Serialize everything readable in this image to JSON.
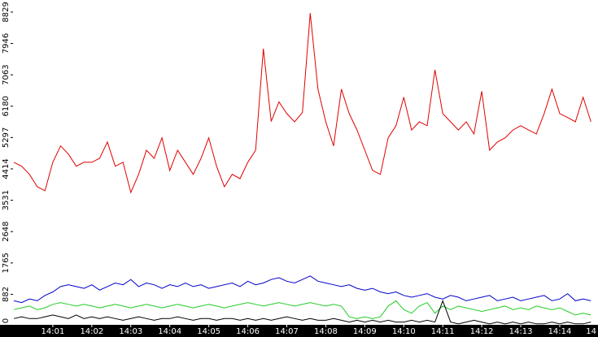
{
  "chart_data": {
    "type": "line",
    "x": [
      0,
      0.2,
      0.4,
      0.6,
      0.8,
      1,
      1.2,
      1.4,
      1.6,
      1.8,
      2,
      2.2,
      2.4,
      2.6,
      2.8,
      3,
      3.2,
      3.4,
      3.6,
      3.8,
      4,
      4.2,
      4.4,
      4.6,
      4.8,
      5,
      5.2,
      5.4,
      5.6,
      5.8,
      6,
      6.2,
      6.4,
      6.6,
      6.8,
      7,
      7.2,
      7.4,
      7.6,
      7.8,
      8,
      8.2,
      8.4,
      8.6,
      8.8,
      9,
      9.2,
      9.4,
      9.6,
      9.8,
      10,
      10.2,
      10.4,
      10.6,
      10.8,
      11,
      11.2,
      11.4,
      11.6,
      11.8,
      12,
      12.2,
      12.4,
      12.6,
      12.8,
      13,
      13.2,
      13.4,
      13.6,
      13.8,
      14,
      14.2,
      14.4,
      14.6,
      14.8
    ],
    "xlim": [
      0,
      14.96
    ],
    "xticks": [
      {
        "value": 1,
        "label": "14:01"
      },
      {
        "value": 2,
        "label": "14:02"
      },
      {
        "value": 3,
        "label": "14:03"
      },
      {
        "value": 4,
        "label": "14:04"
      },
      {
        "value": 5,
        "label": "14:05"
      },
      {
        "value": 6,
        "label": "14:06"
      },
      {
        "value": 7,
        "label": "14:07"
      },
      {
        "value": 8,
        "label": "14:08"
      },
      {
        "value": 9,
        "label": "14:09"
      },
      {
        "value": 10,
        "label": "14:10"
      },
      {
        "value": 11,
        "label": "14:11"
      },
      {
        "value": 12,
        "label": "14:12"
      },
      {
        "value": 13,
        "label": "14:13"
      },
      {
        "value": 14,
        "label": "14:14"
      },
      {
        "value": 15,
        "label": "14"
      }
    ],
    "ylim": [
      0,
      9170
    ],
    "yticks": [
      0,
      882,
      1765,
      2648,
      3531,
      4414,
      5297,
      6180,
      7063,
      7946,
      8829
    ],
    "series": [
      {
        "color": "#e00000",
        "values": [
          4600,
          4490,
          4260,
          3910,
          3800,
          4600,
          5060,
          4830,
          4490,
          4600,
          4600,
          4710,
          5170,
          4490,
          4600,
          3750,
          4260,
          4940,
          4710,
          5290,
          4370,
          4940,
          4600,
          4260,
          4710,
          5290,
          4490,
          3910,
          4260,
          4140,
          4600,
          4940,
          7800,
          5750,
          6300,
          5970,
          5740,
          6000,
          8800,
          6660,
          5740,
          5060,
          6660,
          5970,
          5510,
          4940,
          4370,
          4260,
          5290,
          5630,
          6430,
          5510,
          5740,
          5630,
          7200,
          5970,
          5740,
          5510,
          5740,
          5400,
          6600,
          4940,
          5170,
          5290,
          5510,
          5630,
          5510,
          5400,
          5970,
          6660,
          5970,
          5860,
          5740,
          6430,
          5740
        ]
      },
      {
        "color": "#0000cc",
        "values": [
          700,
          650,
          750,
          700,
          850,
          950,
          1100,
          1150,
          1100,
          1050,
          1150,
          1000,
          1100,
          1200,
          1150,
          1300,
          1100,
          1200,
          1150,
          1050,
          1150,
          1100,
          1200,
          1100,
          1150,
          1050,
          1100,
          1150,
          1200,
          1100,
          1250,
          1150,
          1200,
          1300,
          1350,
          1250,
          1200,
          1300,
          1400,
          1250,
          1200,
          1150,
          1100,
          1150,
          1050,
          1000,
          1050,
          950,
          900,
          950,
          850,
          800,
          850,
          900,
          800,
          750,
          850,
          800,
          700,
          750,
          800,
          850,
          700,
          750,
          800,
          700,
          750,
          800,
          850,
          700,
          750,
          900,
          700,
          750,
          700
        ]
      },
      {
        "color": "#22cc22",
        "values": [
          450,
          500,
          550,
          450,
          500,
          600,
          650,
          600,
          550,
          600,
          550,
          500,
          550,
          600,
          550,
          500,
          550,
          600,
          550,
          500,
          550,
          600,
          550,
          500,
          550,
          600,
          550,
          500,
          550,
          600,
          650,
          600,
          550,
          600,
          650,
          600,
          550,
          600,
          650,
          600,
          550,
          600,
          550,
          250,
          200,
          250,
          200,
          250,
          550,
          700,
          450,
          350,
          550,
          650,
          350,
          550,
          450,
          550,
          500,
          450,
          400,
          450,
          500,
          550,
          450,
          500,
          450,
          550,
          500,
          450,
          500,
          400,
          300,
          350,
          300
        ]
      },
      {
        "color": "#000000",
        "values": [
          200,
          250,
          200,
          200,
          250,
          300,
          250,
          200,
          300,
          200,
          250,
          200,
          250,
          200,
          150,
          200,
          250,
          200,
          150,
          200,
          200,
          250,
          200,
          150,
          200,
          200,
          150,
          200,
          200,
          150,
          200,
          150,
          200,
          150,
          200,
          250,
          200,
          150,
          200,
          150,
          150,
          200,
          150,
          100,
          150,
          100,
          150,
          100,
          150,
          100,
          100,
          150,
          100,
          150,
          100,
          700,
          100,
          50,
          100,
          150,
          100,
          50,
          100,
          50,
          100,
          50,
          100,
          50,
          50,
          100,
          50,
          100,
          50,
          50,
          100
        ]
      }
    ]
  }
}
